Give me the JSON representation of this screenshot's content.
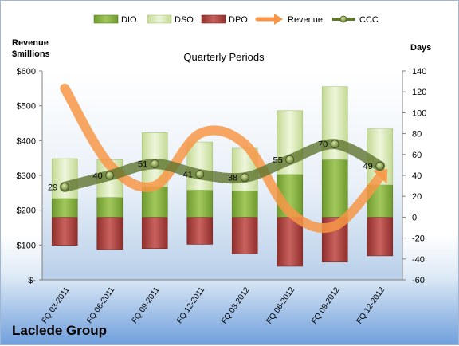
{
  "chart_data": {
    "type": "bar",
    "title": "Quarterly Periods",
    "company": "Laclede Group",
    "left_axis_label": "Revenue\n$millions",
    "right_axis_label": "Days",
    "left_axis_ticks": [
      "$-",
      "$100",
      "$200",
      "$300",
      "$400",
      "$500",
      "$600"
    ],
    "right_axis_ticks": [
      "-60",
      "-40",
      "-20",
      "0",
      "20",
      "40",
      "60",
      "80",
      "100",
      "120",
      "140"
    ],
    "left_ylim": [
      0,
      600
    ],
    "right_ylim": [
      -60,
      140
    ],
    "grid": false,
    "legend_position": "top",
    "categories": [
      "FQ 03-2011",
      "FQ 06-2011",
      "FQ 09-2011",
      "FQ 12-2011",
      "FQ 03-2012",
      "FQ 06-2012",
      "FQ 09-2012",
      "FQ 12-2012"
    ],
    "series": [
      {
        "name": "DIO",
        "axis": "right",
        "kind": "bar",
        "color": "#8cb34a",
        "values": [
          18,
          19,
          29,
          26,
          25,
          41,
          55,
          31
        ]
      },
      {
        "name": "DSO",
        "axis": "right",
        "kind": "bar",
        "color": "#d7e7b5",
        "values": [
          38,
          36,
          52,
          46,
          41,
          61,
          70,
          54
        ]
      },
      {
        "name": "DPO",
        "axis": "right",
        "kind": "bar",
        "color": "#c0504d",
        "values": [
          -27,
          -31,
          -30,
          -26,
          -35,
          -47,
          -43,
          -37
        ]
      },
      {
        "name": "Revenue",
        "axis": "left",
        "kind": "line",
        "color": "#f79646",
        "values": [
          550,
          330,
          270,
          420,
          390,
          195,
          155,
          295
        ]
      },
      {
        "name": "CCC",
        "axis": "right",
        "kind": "line",
        "color": "#5f7530",
        "values": [
          29,
          40,
          51,
          41,
          38,
          55,
          70,
          49
        ]
      }
    ],
    "data_labels": [
      "29",
      "40",
      "51",
      "41",
      "38",
      "55",
      "70",
      "49"
    ]
  }
}
